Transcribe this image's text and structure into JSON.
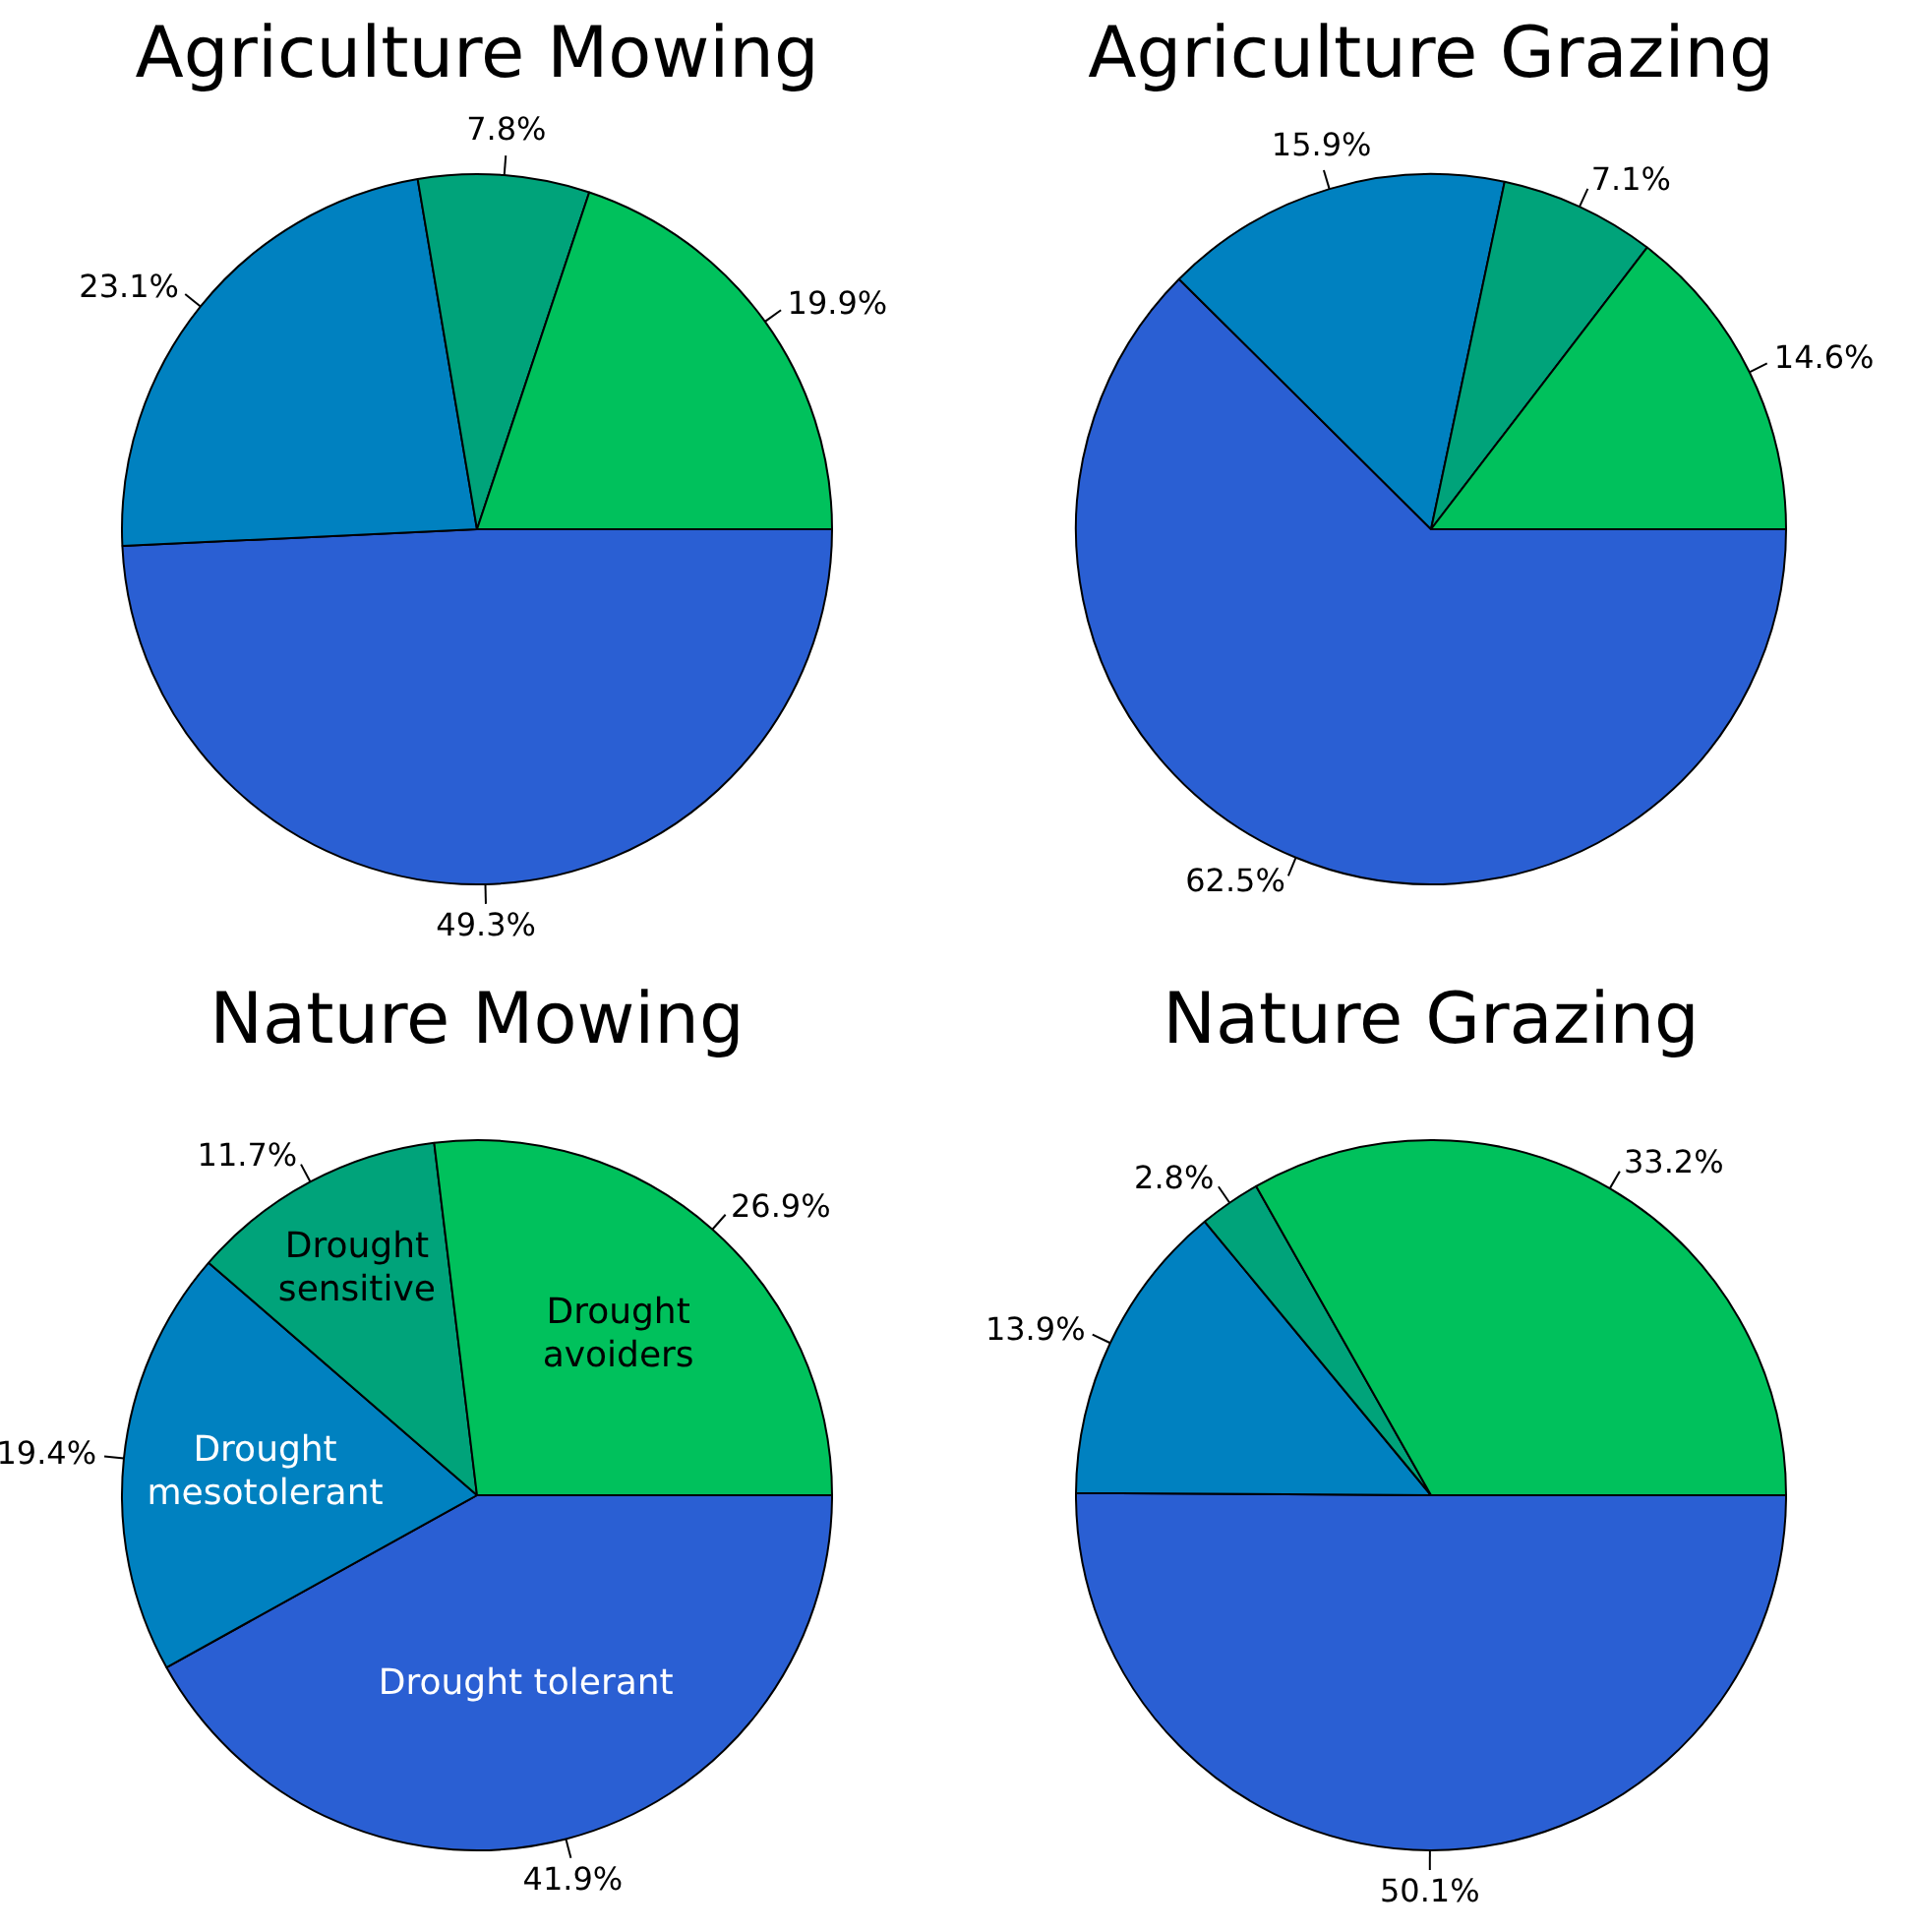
{
  "chart_data": [
    {
      "type": "pie",
      "title": "Agriculture Mowing",
      "categories": [
        null,
        null,
        null,
        null
      ],
      "values": [
        49.3,
        23.1,
        7.8,
        19.9
      ],
      "value_labels": [
        "49.3%",
        "23.1%",
        "7.8%",
        "19.9%"
      ],
      "colors": [
        "#2a5fd3",
        "#0081c0",
        "#00a37a",
        "#00c15c"
      ],
      "legend": false
    },
    {
      "type": "pie",
      "title": "Agriculture Grazing",
      "categories": [
        null,
        null,
        null,
        null
      ],
      "values": [
        62.5,
        15.9,
        7.1,
        14.6
      ],
      "value_labels": [
        "62.5%",
        "15.9%",
        "7.1%",
        "14.6%"
      ],
      "colors": [
        "#2a5fd3",
        "#0081c0",
        "#00a37a",
        "#00c15c"
      ],
      "legend": false
    },
    {
      "type": "pie",
      "title": "Nature Mowing",
      "categories": [
        "Drought tolerant",
        "Drought mesotolerant",
        "Drought sensitive",
        "Drought avoiders"
      ],
      "values": [
        41.9,
        19.4,
        11.7,
        26.9
      ],
      "value_labels": [
        "41.9%",
        "19.4%",
        "11.7%",
        "26.9%"
      ],
      "colors": [
        "#2a5fd3",
        "#0081c0",
        "#00a37a",
        "#00c15c"
      ],
      "legend": false
    },
    {
      "type": "pie",
      "title": "Nature Grazing",
      "categories": [
        null,
        null,
        null,
        null
      ],
      "values": [
        50.1,
        13.9,
        2.8,
        33.2
      ],
      "value_labels": [
        "50.1%",
        "13.9%",
        "2.8%",
        "33.2%"
      ],
      "colors": [
        "#2a5fd3",
        "#0081c0",
        "#00a37a",
        "#00c15c"
      ],
      "legend": false
    }
  ]
}
